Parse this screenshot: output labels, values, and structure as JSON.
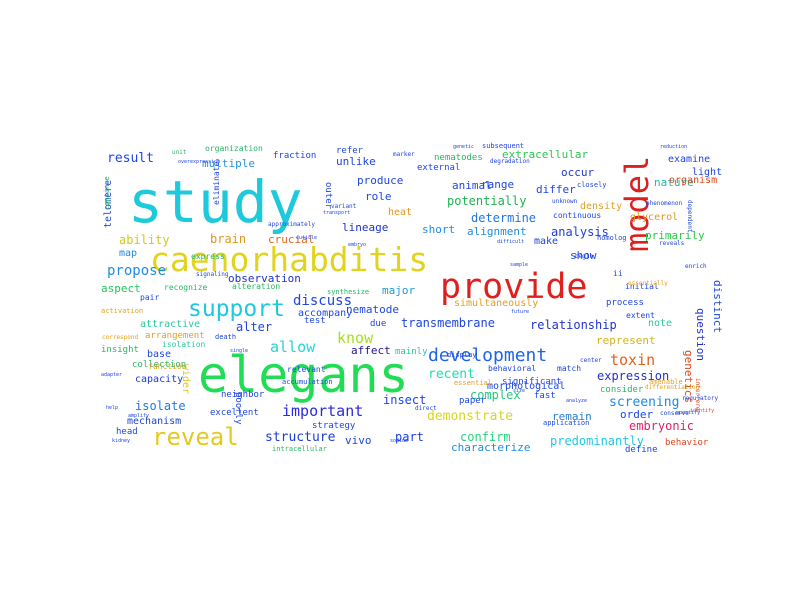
{
  "words": [
    {
      "text": "study",
      "color": "#1ec9dc"
    },
    {
      "text": "elegans",
      "color": "#20dd55"
    },
    {
      "text": "caenorhabditis",
      "color": "#e0d41e"
    },
    {
      "text": "provide",
      "color": "#e0201e"
    },
    {
      "text": "model",
      "color": "#dd1f1f"
    },
    {
      "text": "reveal",
      "color": "#e5c91e"
    },
    {
      "text": "support",
      "color": "#1ec8e0"
    },
    {
      "text": "development",
      "color": "#1e64e6"
    },
    {
      "text": "important",
      "color": "#2a2ae0"
    },
    {
      "text": "demonstrate",
      "color": "#d9d41e"
    },
    {
      "text": "toxin",
      "color": "#e4601e"
    },
    {
      "text": "allow",
      "color": "#28d4d4"
    },
    {
      "text": "know",
      "color": "#a4e01e"
    },
    {
      "text": "discuss",
      "color": "#2046e0"
    },
    {
      "text": "propose",
      "color": "#1e8de0"
    },
    {
      "text": "result",
      "color": "#1e46e0"
    },
    {
      "text": "structure",
      "color": "#1e3cd8"
    },
    {
      "text": "recent",
      "color": "#1ee0b4"
    },
    {
      "text": "expression",
      "color": "#2030c8"
    },
    {
      "text": "screening",
      "color": "#1e8ae4"
    },
    {
      "text": "embryonic",
      "color": "#e01e64"
    },
    {
      "text": "relationship",
      "color": "#1e32d2"
    },
    {
      "text": "transmembrane",
      "color": "#1e46dc"
    },
    {
      "text": "potentially",
      "color": "#20b450"
    },
    {
      "text": "determine",
      "color": "#1e78e0"
    },
    {
      "text": "analysis",
      "color": "#1e3cd2"
    },
    {
      "text": "complex",
      "color": "#20c880"
    },
    {
      "text": "insect",
      "color": "#1e46e0"
    },
    {
      "text": "confirm",
      "color": "#28d47c"
    },
    {
      "text": "characterize",
      "color": "#1e8ce0"
    },
    {
      "text": "predominantly",
      "color": "#20c8e0"
    },
    {
      "text": "part",
      "color": "#1e3ce0"
    },
    {
      "text": "isolate",
      "color": "#1e78e0"
    },
    {
      "text": "ability",
      "color": "#d2c81e"
    },
    {
      "text": "brain",
      "color": "#e0961e"
    },
    {
      "text": "aspect",
      "color": "#20c85a"
    },
    {
      "text": "alter",
      "color": "#1e46e0"
    },
    {
      "text": "affect",
      "color": "#20148c"
    },
    {
      "text": "nematode",
      "color": "#1e46dc"
    },
    {
      "text": "major",
      "color": "#1e96e0"
    },
    {
      "text": "lineage",
      "color": "#1e32c8"
    },
    {
      "text": "observation",
      "color": "#1e32c8"
    },
    {
      "text": "range",
      "color": "#1e46e0"
    },
    {
      "text": "animal",
      "color": "#1e46e0"
    },
    {
      "text": "unlike",
      "color": "#1e46e0"
    },
    {
      "text": "occur",
      "color": "#1e3cc8"
    },
    {
      "text": "extracellular",
      "color": "#28c850"
    },
    {
      "text": "nature",
      "color": "#28b4a0"
    },
    {
      "text": "primarily",
      "color": "#28c846"
    },
    {
      "text": "question",
      "color": "#1e32c8"
    },
    {
      "text": "distinct",
      "color": "#1e46dc"
    },
    {
      "text": "genetics",
      "color": "#e0461e"
    },
    {
      "text": "remain",
      "color": "#2880c8"
    },
    {
      "text": "order",
      "color": "#1e46e0"
    },
    {
      "text": "show",
      "color": "#1e46e0"
    },
    {
      "text": "short",
      "color": "#1e8ce0"
    },
    {
      "text": "alignment",
      "color": "#1e8ce0"
    },
    {
      "text": "represent",
      "color": "#d4b41e"
    },
    {
      "text": "vivo",
      "color": "#1e46e0"
    },
    {
      "text": "mechanism",
      "color": "#1e46c8"
    },
    {
      "text": "capacity",
      "color": "#1e3cc8"
    },
    {
      "text": "base",
      "color": "#1e46e0"
    },
    {
      "text": "wider",
      "color": "#d4c81e"
    },
    {
      "text": "multiple",
      "color": "#1e96e0"
    },
    {
      "text": "role",
      "color": "#1e46e0"
    },
    {
      "text": "crucial",
      "color": "#e0641e"
    },
    {
      "text": "produce",
      "color": "#1e46e0"
    },
    {
      "text": "telomere",
      "color": "#1e46e0"
    },
    {
      "text": "map",
      "color": "#1e8ce0"
    },
    {
      "text": "accompany",
      "color": "#1e46e0"
    },
    {
      "text": "attractive",
      "color": "#28c8a0"
    },
    {
      "text": "insight",
      "color": "#28b464"
    },
    {
      "text": "excellent",
      "color": "#1e46e0"
    },
    {
      "text": "strategy",
      "color": "#1e46e0"
    },
    {
      "text": "differ",
      "color": "#1e46e0"
    },
    {
      "text": "density",
      "color": "#e0a01e"
    },
    {
      "text": "glycerol",
      "color": "#e0961e"
    },
    {
      "text": "make",
      "color": "#1e46e0"
    },
    {
      "text": "note",
      "color": "#28c8a0"
    },
    {
      "text": "simultaneously",
      "color": "#e0a01e"
    },
    {
      "text": "morphological",
      "color": "#1e46e0"
    },
    {
      "text": "significant",
      "color": "#1e46e0"
    },
    {
      "text": "organism",
      "color": "#e0461e"
    },
    {
      "text": "examine",
      "color": "#1e46e0"
    },
    {
      "text": "light",
      "color": "#1e46e0"
    },
    {
      "text": "heat",
      "color": "#e0961e"
    },
    {
      "text": "fraction",
      "color": "#1e46e0"
    },
    {
      "text": "refer",
      "color": "#1e46e0"
    },
    {
      "text": "organization",
      "color": "#28b464"
    },
    {
      "text": "nematodes",
      "color": "#28b464"
    },
    {
      "text": "subsequent",
      "color": "#1e46e0"
    },
    {
      "text": "external",
      "color": "#1e46e0"
    },
    {
      "text": "continuous",
      "color": "#1e46e0"
    },
    {
      "text": "process",
      "color": "#1e46e0"
    },
    {
      "text": "extent",
      "color": "#1e46e0"
    },
    {
      "text": "consider",
      "color": "#28b464"
    },
    {
      "text": "define",
      "color": "#1e46e0"
    },
    {
      "text": "behavior",
      "color": "#e0461e"
    },
    {
      "text": "fast",
      "color": "#1e46e0"
    },
    {
      "text": "paper",
      "color": "#1e46e0"
    },
    {
      "text": "essential",
      "color": "#e0a01e"
    },
    {
      "text": "behavioral",
      "color": "#1e46e0"
    },
    {
      "text": "match",
      "color": "#1e46e0"
    },
    {
      "text": "display",
      "color": "#1e46e0"
    },
    {
      "text": "mainly",
      "color": "#28c8a0"
    },
    {
      "text": "due",
      "color": "#1e46e0"
    },
    {
      "text": "test",
      "color": "#1e46e0"
    },
    {
      "text": "death",
      "color": "#1e46e0"
    },
    {
      "text": "isolation",
      "color": "#28c8a0"
    },
    {
      "text": "arrangement",
      "color": "#e0a01e"
    },
    {
      "text": "collection",
      "color": "#28b464"
    },
    {
      "text": "function",
      "color": "#e0a01e"
    },
    {
      "text": "head",
      "color": "#1e46e0"
    },
    {
      "text": "neighbor",
      "color": "#1e46e0"
    },
    {
      "text": "poorly",
      "color": "#1e46e0"
    },
    {
      "text": "relevant",
      "color": "#1e46e0"
    },
    {
      "text": "accumulation",
      "color": "#1e46e0"
    },
    {
      "text": "intracellular",
      "color": "#28b464"
    },
    {
      "text": "recognize",
      "color": "#28b464"
    },
    {
      "text": "alteration",
      "color": "#28b464"
    },
    {
      "text": "synthesize",
      "color": "#28b464"
    },
    {
      "text": "express",
      "color": "#28b464"
    },
    {
      "text": "signaling",
      "color": "#1e46e0"
    },
    {
      "text": "pair",
      "color": "#1e46e0"
    },
    {
      "text": "activation",
      "color": "#e0a01e"
    },
    {
      "text": "correspond",
      "color": "#e0a01e"
    },
    {
      "text": "eliminate",
      "color": "#1e46e0"
    },
    {
      "text": "continue",
      "color": "#28b464"
    },
    {
      "text": "unit",
      "color": "#28b464"
    },
    {
      "text": "variant",
      "color": "#1e46e0"
    },
    {
      "text": "marker",
      "color": "#1e46e0"
    },
    {
      "text": "genetic",
      "color": "#1e46e0"
    },
    {
      "text": "closely",
      "color": "#1e46e0"
    },
    {
      "text": "unknown",
      "color": "#1e46e0"
    },
    {
      "text": "homolog",
      "color": "#1e46e0"
    },
    {
      "text": "initial",
      "color": "#1e46e0"
    },
    {
      "text": "essentially",
      "color": "#e0a01e"
    },
    {
      "text": "reveals",
      "color": "#1e46e0"
    },
    {
      "text": "ii",
      "color": "#1e46e0"
    },
    {
      "text": "amenable",
      "color": "#e0a01e"
    },
    {
      "text": "interfere",
      "color": "#e0461e"
    },
    {
      "text": "identify",
      "color": "#e0461e"
    },
    {
      "text": "regulatory",
      "color": "#1e46e0"
    },
    {
      "text": "differentiation",
      "color": "#e0a01e"
    },
    {
      "text": "reduction",
      "color": "#1e46e0"
    },
    {
      "text": "phenomenon",
      "color": "#1e46e0"
    },
    {
      "text": "begin",
      "color": "#1e46e0"
    },
    {
      "text": "application",
      "color": "#1e46e0"
    },
    {
      "text": "sodium",
      "color": "#1e46e0"
    },
    {
      "text": "direct",
      "color": "#1e46e0"
    },
    {
      "text": "amplify",
      "color": "#1e46e0"
    },
    {
      "text": "adapter",
      "color": "#1e46e0"
    },
    {
      "text": "kidney",
      "color": "#1e46e0"
    },
    {
      "text": "help",
      "color": "#1e46e0"
    },
    {
      "text": "single",
      "color": "#1e46e0"
    },
    {
      "text": "transport",
      "color": "#1e46e0"
    },
    {
      "text": "approximately",
      "color": "#1e46e0"
    },
    {
      "text": "embryo",
      "color": "#1e46e0"
    },
    {
      "text": "overexpression",
      "color": "#1e46e0"
    },
    {
      "text": "cuticle",
      "color": "#1e46e0"
    },
    {
      "text": "degradation",
      "color": "#1e46e0"
    },
    {
      "text": "analyze",
      "color": "#1e46e0"
    },
    {
      "text": "dependent",
      "color": "#1e46e0"
    },
    {
      "text": "enrich",
      "color": "#1e46e0"
    },
    {
      "text": "conserve",
      "color": "#1e46e0"
    },
    {
      "text": "center",
      "color": "#1e46e0"
    },
    {
      "text": "sample",
      "color": "#1e46e0"
    },
    {
      "text": "size",
      "color": "#1e46e0"
    },
    {
      "text": "future",
      "color": "#1e46e0"
    },
    {
      "text": "difficult",
      "color": "#1e46e0"
    },
    {
      "text": "quantify",
      "color": "#1e46e0"
    },
    {
      "text": "outer",
      "color": "#1e46e0"
    }
  ]
}
